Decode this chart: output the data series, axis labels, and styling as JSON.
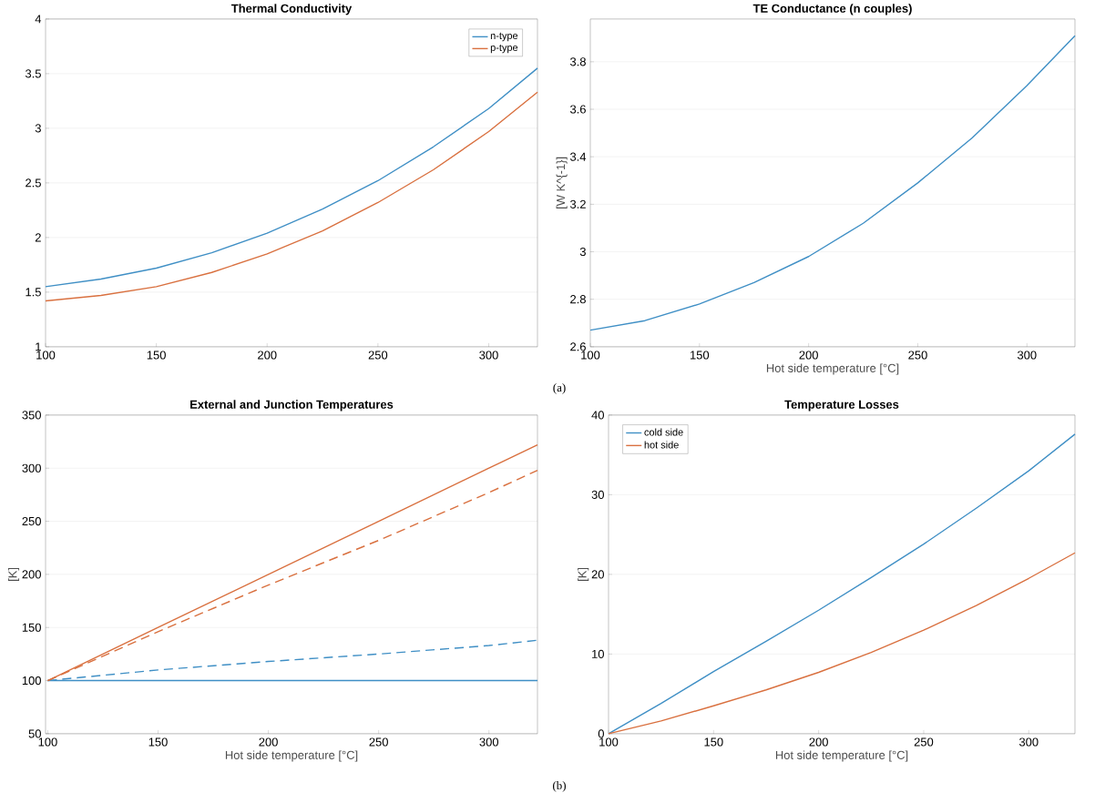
{
  "chart_data": [
    {
      "type": "line",
      "title": "Thermal Conductivity",
      "x": [
        100,
        125,
        150,
        175,
        200,
        225,
        250,
        275,
        300,
        322
      ],
      "xlim": [
        100,
        322
      ],
      "xticks": [
        100,
        150,
        200,
        250,
        300
      ],
      "ylim": [
        1,
        4
      ],
      "yticks": [
        1,
        1.5,
        2,
        2.5,
        3,
        3.5,
        4
      ],
      "grid": "y",
      "legend": "top right",
      "series": [
        {
          "name": "n-type",
          "color": "#3f8fc5",
          "values": [
            1.55,
            1.62,
            1.72,
            1.86,
            2.04,
            2.26,
            2.52,
            2.83,
            3.18,
            3.55
          ]
        },
        {
          "name": "p-type",
          "color": "#d9703f",
          "values": [
            1.42,
            1.47,
            1.55,
            1.68,
            1.85,
            2.06,
            2.32,
            2.62,
            2.97,
            3.33
          ]
        }
      ]
    },
    {
      "type": "line",
      "title": "TE Conductance (n couples)",
      "xlabel": "Hot side temperature [°C]",
      "ylabel": "[W K^{-1}]",
      "x": [
        100,
        125,
        150,
        175,
        200,
        225,
        250,
        275,
        300,
        322
      ],
      "xlim": [
        100,
        322
      ],
      "xticks": [
        100,
        150,
        200,
        250,
        300
      ],
      "ylim": [
        2.6,
        3.98
      ],
      "yticks": [
        2.6,
        2.8,
        3,
        3.2,
        3.4,
        3.6,
        3.8
      ],
      "grid": "y",
      "annotations": [
        "(a)"
      ],
      "series": [
        {
          "color": "#3f8fc5",
          "values": [
            2.67,
            2.71,
            2.78,
            2.87,
            2.98,
            3.12,
            3.29,
            3.48,
            3.7,
            3.91
          ]
        }
      ]
    },
    {
      "type": "line",
      "title": "External and Junction Temperatures",
      "xlabel": "Hot side temperature [°C]",
      "ylabel": "[K]",
      "x": [
        100,
        150,
        200,
        250,
        300,
        322
      ],
      "xlim": [
        99,
        322
      ],
      "xticks": [
        100,
        150,
        200,
        250,
        300
      ],
      "ylim": [
        50,
        350
      ],
      "yticks": [
        50,
        100,
        150,
        200,
        250,
        300,
        350
      ],
      "grid": "y",
      "series": [
        {
          "color": "#3f8fc5",
          "values": [
            100,
            100,
            100,
            100,
            100,
            100
          ]
        },
        {
          "color": "#3f8fc5",
          "line_style": "dashed",
          "values": [
            100,
            110,
            118,
            125,
            133,
            138
          ]
        },
        {
          "color": "#d9703f",
          "values": [
            100,
            150,
            200,
            250,
            300,
            322
          ]
        },
        {
          "color": "#d9703f",
          "line_style": "dashed",
          "values": [
            100,
            146,
            190,
            232,
            277,
            298
          ]
        }
      ]
    },
    {
      "type": "line",
      "title": "Temperature Losses",
      "xlabel": "Hot side temperature [°C]",
      "ylabel": "[K]",
      "x": [
        100,
        125,
        150,
        175,
        200,
        225,
        250,
        275,
        300,
        322
      ],
      "xlim": [
        100,
        322
      ],
      "xticks": [
        100,
        150,
        200,
        250,
        300
      ],
      "ylim": [
        0,
        40
      ],
      "yticks": [
        0,
        10,
        20,
        30,
        40
      ],
      "grid": "y",
      "legend": "top left",
      "annotations": [
        "(b)"
      ],
      "series": [
        {
          "name": "cold side",
          "color": "#3f8fc5",
          "values": [
            0,
            3.8,
            7.8,
            11.6,
            15.5,
            19.6,
            23.8,
            28.3,
            33,
            37.6
          ]
        },
        {
          "name": "hot side",
          "color": "#d9703f",
          "values": [
            0,
            1.6,
            3.5,
            5.5,
            7.7,
            10.2,
            13,
            16.1,
            19.5,
            22.7
          ]
        }
      ]
    }
  ]
}
